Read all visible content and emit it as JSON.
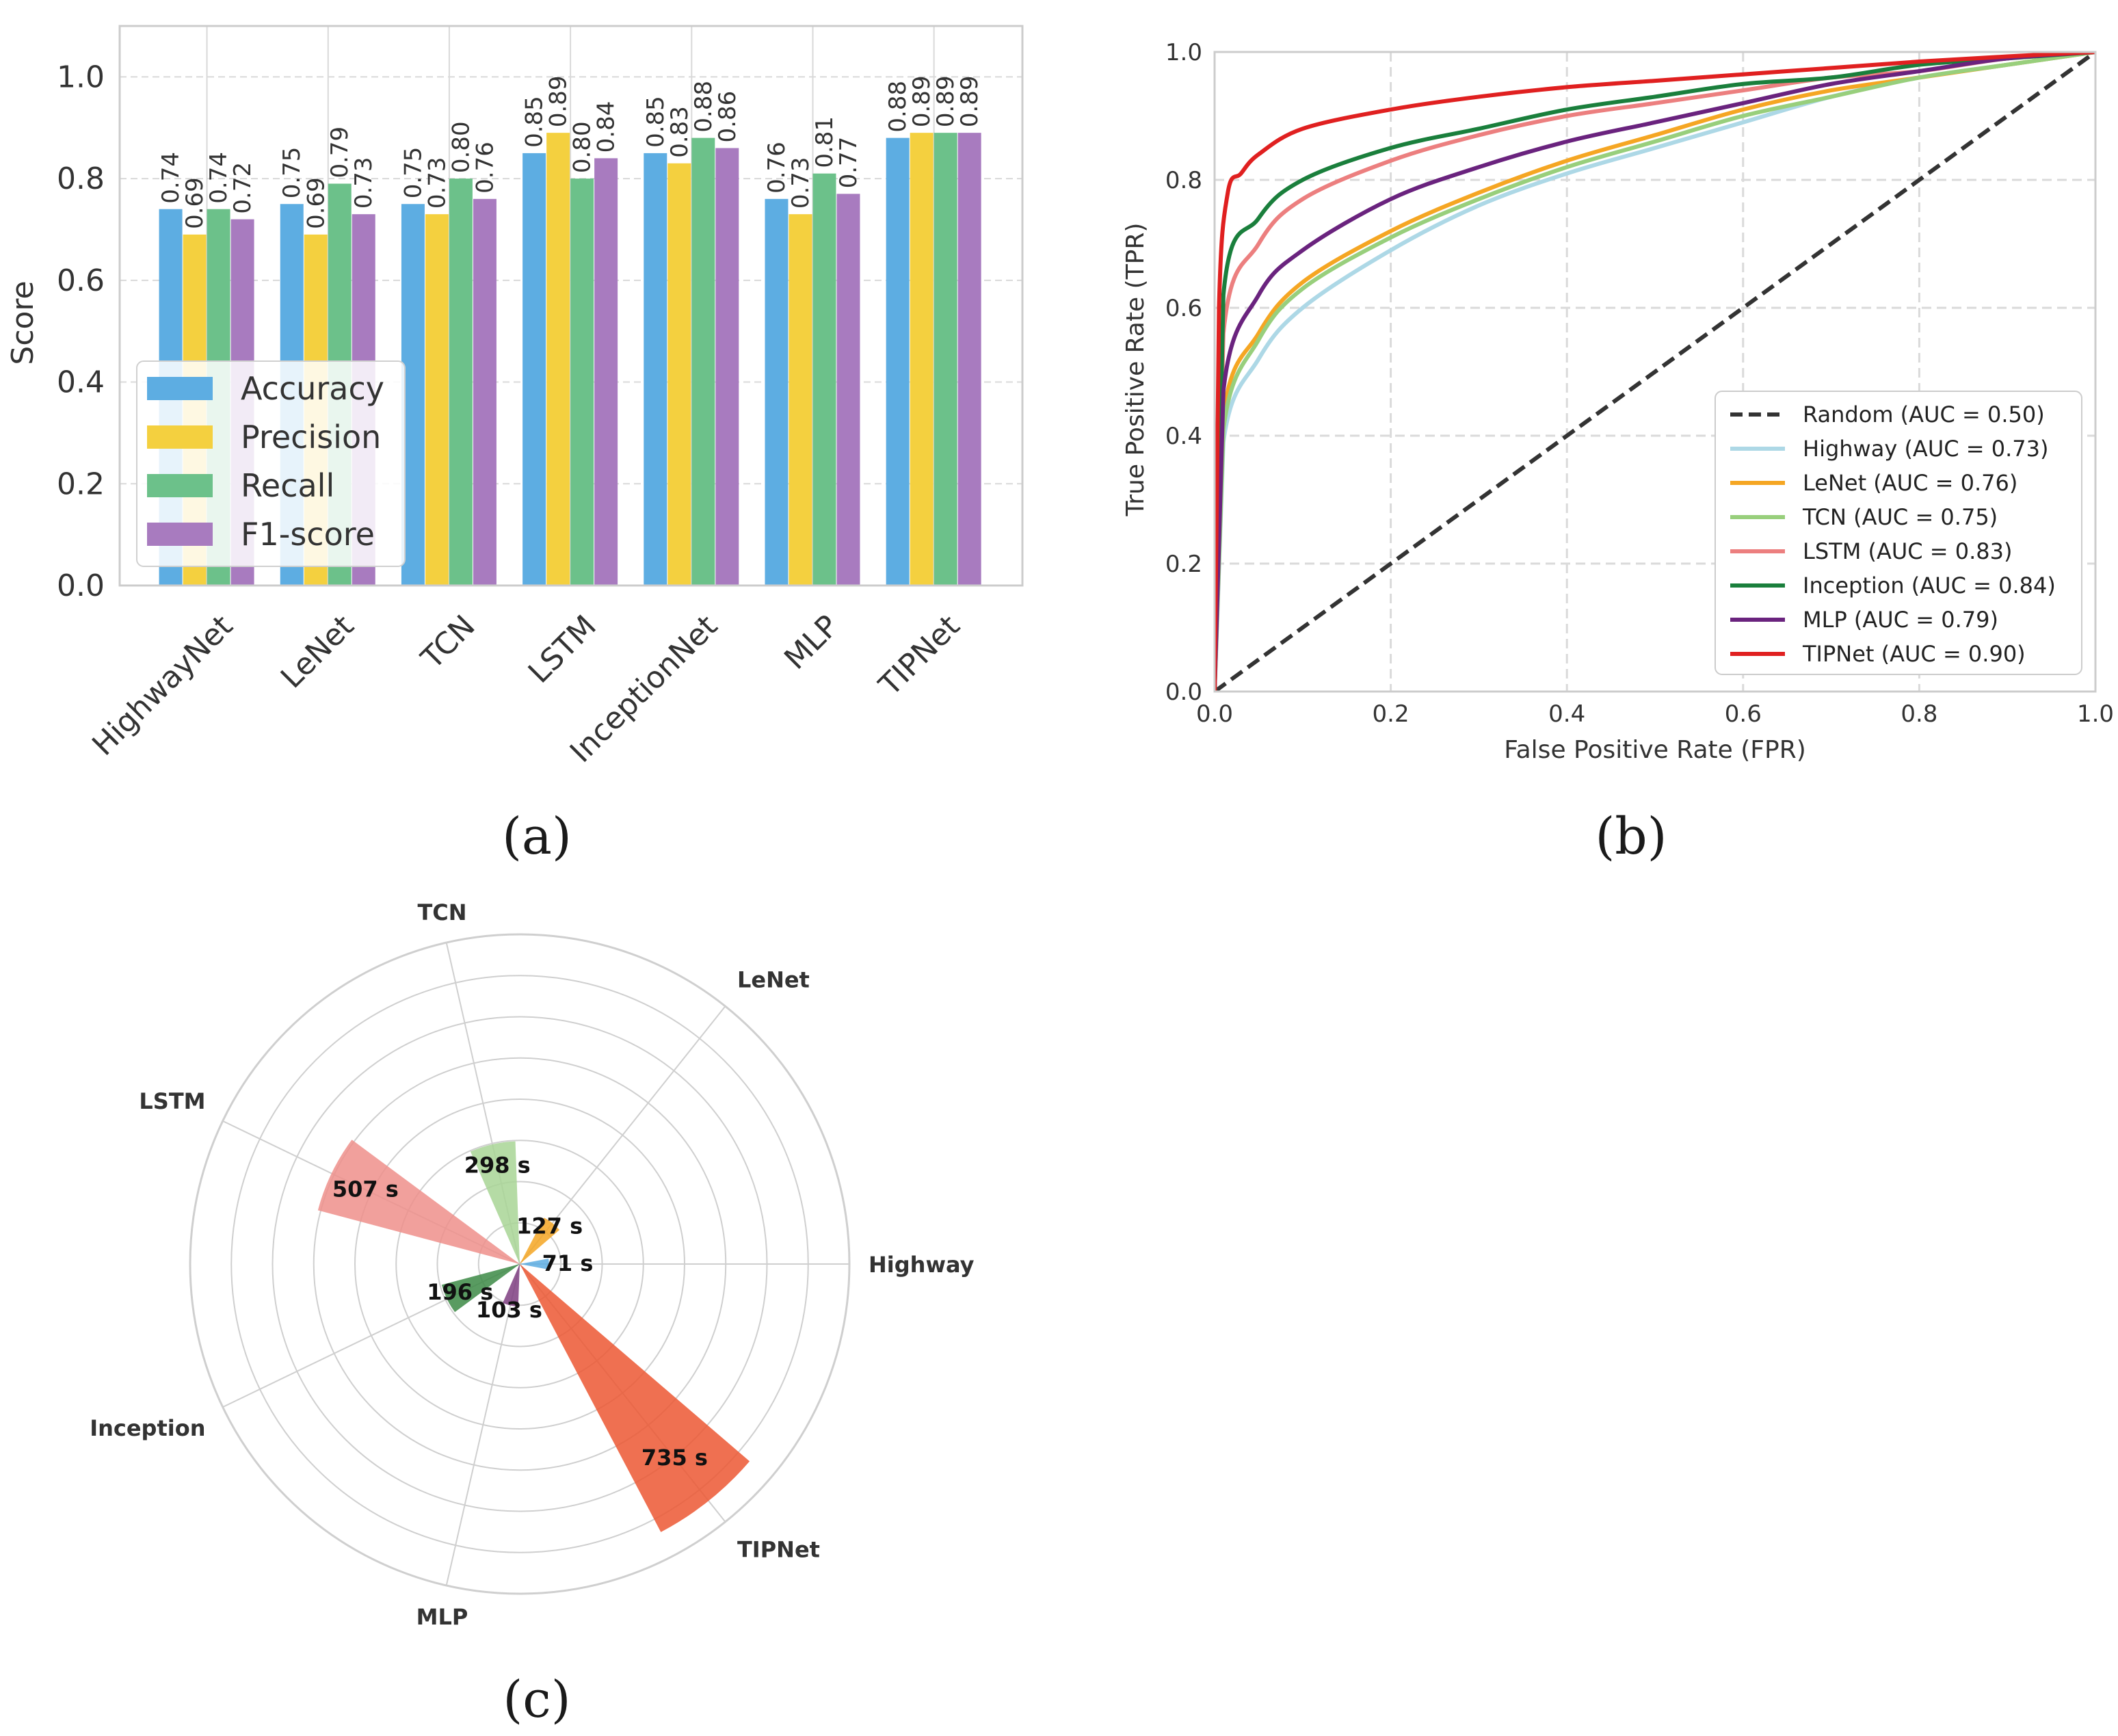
{
  "chart_data": [
    {
      "id": "a",
      "type": "bar",
      "caption": "(a)",
      "categories": [
        "HighwayNet",
        "LeNet",
        "TCN",
        "LSTM",
        "InceptionNet",
        "MLP",
        "TIPNet"
      ],
      "series": [
        {
          "name": "Accuracy",
          "color": "#5dade2",
          "values": [
            0.74,
            0.75,
            0.75,
            0.85,
            0.85,
            0.76,
            0.88
          ],
          "labels": [
            "0.74",
            "0.75",
            "0.75",
            "0.85",
            "0.85",
            "0.76",
            "0.88"
          ]
        },
        {
          "name": "Precision",
          "color": "#f4d03f",
          "values": [
            0.69,
            0.69,
            0.73,
            0.89,
            0.83,
            0.73,
            0.89
          ],
          "labels": [
            "0.69",
            "0.69",
            "0.73",
            "0.89",
            "0.83",
            "0.73",
            "0.89"
          ]
        },
        {
          "name": "Recall",
          "color": "#6cc18a",
          "values": [
            0.74,
            0.79,
            0.8,
            0.8,
            0.88,
            0.81,
            0.89
          ],
          "labels": [
            "0.74",
            "0.79",
            "0.80",
            "0.80",
            "0.88",
            "0.81",
            "0.89"
          ]
        },
        {
          "name": "F1-score",
          "color": "#a87bbf",
          "values": [
            0.72,
            0.73,
            0.76,
            0.84,
            0.86,
            0.77,
            0.89
          ],
          "labels": [
            "0.72",
            "0.73",
            "0.76",
            "0.84",
            "0.86",
            "0.77",
            "0.89"
          ]
        }
      ],
      "ylabel": "Score",
      "xlabel": "",
      "ylim": [
        0,
        1.1
      ],
      "yticks": [
        "0.0",
        "0.2",
        "0.4",
        "0.6",
        "0.8",
        "1.0"
      ],
      "legend": "center-left",
      "grid": true
    },
    {
      "id": "b",
      "type": "line",
      "caption": "(b)",
      "xlabel": "False Positive Rate (FPR)",
      "ylabel": "True Positive Rate (TPR)",
      "xlim": [
        0,
        1
      ],
      "ylim": [
        0,
        1
      ],
      "xticks": [
        "0.0",
        "0.2",
        "0.4",
        "0.6",
        "0.8",
        "1.0"
      ],
      "yticks": [
        "0.0",
        "0.2",
        "0.4",
        "0.6",
        "0.8",
        "1.0"
      ],
      "legend": "lower-right",
      "grid": true,
      "series": [
        {
          "name": "Random (AUC = 0.50)",
          "color": "#333333",
          "dashed": true,
          "x": [
            0,
            1
          ],
          "y": [
            0,
            1
          ]
        },
        {
          "name": "Highway (AUC = 0.73)",
          "color": "#add8e6",
          "x": [
            0,
            0.01,
            0.05,
            0.1,
            0.2,
            0.3,
            0.4,
            0.5,
            0.6,
            0.7,
            0.8,
            0.9,
            1.0
          ],
          "y": [
            0,
            0.39,
            0.52,
            0.6,
            0.69,
            0.76,
            0.81,
            0.85,
            0.89,
            0.93,
            0.96,
            0.98,
            1.0
          ]
        },
        {
          "name": "LeNet (AUC = 0.76)",
          "color": "#f5a623",
          "x": [
            0,
            0.01,
            0.05,
            0.1,
            0.2,
            0.3,
            0.4,
            0.5,
            0.6,
            0.7,
            0.8,
            0.9,
            1.0
          ],
          "y": [
            0,
            0.43,
            0.56,
            0.64,
            0.72,
            0.78,
            0.83,
            0.87,
            0.91,
            0.94,
            0.96,
            0.98,
            1.0
          ]
        },
        {
          "name": "TCN (AUC = 0.75)",
          "color": "#98cf7c",
          "x": [
            0,
            0.01,
            0.05,
            0.1,
            0.2,
            0.3,
            0.4,
            0.5,
            0.6,
            0.7,
            0.8,
            0.9,
            1.0
          ],
          "y": [
            0,
            0.41,
            0.55,
            0.63,
            0.71,
            0.77,
            0.82,
            0.86,
            0.9,
            0.93,
            0.96,
            0.98,
            1.0
          ]
        },
        {
          "name": "LSTM (AUC = 0.83)",
          "color": "#ec7f7f",
          "x": [
            0,
            0.01,
            0.05,
            0.1,
            0.2,
            0.3,
            0.4,
            0.5,
            0.6,
            0.7,
            0.8,
            0.9,
            1.0
          ],
          "y": [
            0,
            0.56,
            0.7,
            0.77,
            0.83,
            0.87,
            0.9,
            0.92,
            0.94,
            0.96,
            0.97,
            0.99,
            1.0
          ]
        },
        {
          "name": "Inception (AUC = 0.84)",
          "color": "#1a7f3c",
          "x": [
            0,
            0.01,
            0.05,
            0.1,
            0.2,
            0.3,
            0.4,
            0.5,
            0.6,
            0.7,
            0.8,
            0.9,
            1.0
          ],
          "y": [
            0,
            0.62,
            0.74,
            0.8,
            0.85,
            0.88,
            0.91,
            0.93,
            0.95,
            0.96,
            0.98,
            0.99,
            1.0
          ]
        },
        {
          "name": "MLP (AUC = 0.79)",
          "color": "#6a237e",
          "x": [
            0,
            0.01,
            0.05,
            0.1,
            0.2,
            0.3,
            0.4,
            0.5,
            0.6,
            0.7,
            0.8,
            0.9,
            1.0
          ],
          "y": [
            0,
            0.47,
            0.62,
            0.69,
            0.77,
            0.82,
            0.86,
            0.89,
            0.92,
            0.95,
            0.97,
            0.99,
            1.0
          ]
        },
        {
          "name": "TIPNet (AUC = 0.90)",
          "color": "#e02020",
          "x": [
            0,
            0.005,
            0.015,
            0.03,
            0.05,
            0.1,
            0.2,
            0.3,
            0.4,
            0.5,
            0.6,
            0.7,
            0.8,
            0.9,
            1.0
          ],
          "y": [
            0,
            0.6,
            0.78,
            0.81,
            0.84,
            0.88,
            0.91,
            0.93,
            0.945,
            0.955,
            0.965,
            0.975,
            0.985,
            0.993,
            1.0
          ]
        }
      ]
    },
    {
      "id": "c",
      "type": "polar-bar",
      "caption": "(c)",
      "rmax": 800,
      "ring_step": 100,
      "categories": [
        "Highway",
        "LeNet",
        "TCN",
        "LSTM",
        "Inception",
        "MLP",
        "TIPNet"
      ],
      "angles_deg": [
        0,
        51.43,
        102.86,
        154.29,
        205.71,
        257.14,
        308.57
      ],
      "values": [
        71,
        127,
        298,
        507,
        196,
        103,
        735
      ],
      "value_labels": [
        "71 s",
        "127 s",
        "298 s",
        "507 s",
        "196 s",
        "103 s",
        "735 s"
      ],
      "colors": [
        "#5dade2",
        "#f5a623",
        "#a8d595",
        "#ef8f8b",
        "#3c8a45",
        "#7e3d80",
        "#ec5733"
      ]
    }
  ]
}
